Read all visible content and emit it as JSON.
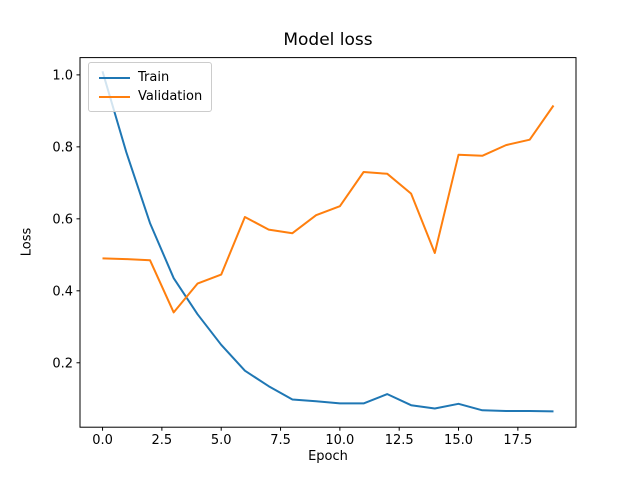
{
  "figure": {
    "title": "Model loss",
    "xlabel": "Epoch",
    "ylabel": "Loss"
  },
  "chart_data": {
    "type": "line",
    "title": "Model loss",
    "xlabel": "Epoch",
    "ylabel": "Loss",
    "grid": false,
    "legend_position": "upper left",
    "legend": [
      "Train",
      "Validation"
    ],
    "x": [
      0,
      1,
      2,
      3,
      4,
      5,
      6,
      7,
      8,
      9,
      10,
      11,
      12,
      13,
      14,
      15,
      16,
      17,
      18,
      19
    ],
    "series": [
      {
        "name": "Train",
        "color": "#1f77b4",
        "values": [
          1.01,
          0.785,
          0.588,
          0.435,
          0.335,
          0.25,
          0.178,
          0.135,
          0.098,
          0.093,
          0.087,
          0.087,
          0.113,
          0.082,
          0.073,
          0.086,
          0.068,
          0.066,
          0.066,
          0.065
        ]
      },
      {
        "name": "Validation",
        "color": "#ff7f0e",
        "values": [
          0.49,
          0.488,
          0.485,
          0.34,
          0.42,
          0.445,
          0.605,
          0.57,
          0.56,
          0.61,
          0.635,
          0.73,
          0.725,
          0.67,
          0.505,
          0.778,
          0.775,
          0.805,
          0.82,
          0.915
        ]
      }
    ],
    "xlim": [
      -0.95,
      19.95
    ],
    "ylim": [
      0.021,
      1.048
    ],
    "xticks": [
      0,
      2.5,
      5,
      7.5,
      10,
      12.5,
      15,
      17.5
    ],
    "xtick_labels": [
      "0.0",
      "2.5",
      "5.0",
      "7.5",
      "10.0",
      "12.5",
      "15.0",
      "17.5"
    ],
    "yticks": [
      0.2,
      0.4,
      0.6,
      0.8,
      1.0
    ],
    "ytick_labels": [
      "0.2",
      "0.4",
      "0.6",
      "0.8",
      "1.0"
    ]
  }
}
